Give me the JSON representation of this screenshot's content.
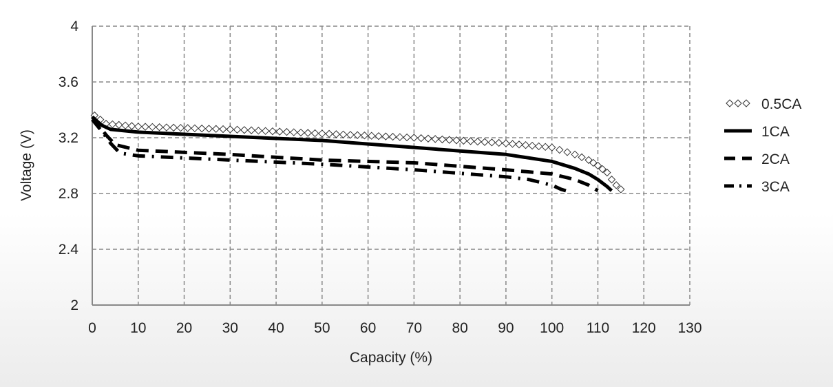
{
  "chart_data": {
    "type": "line",
    "title": "",
    "xlabel": "Capacity (%)",
    "ylabel": "Voltage (V)",
    "xlim": [
      0,
      130
    ],
    "ylim": [
      2,
      4
    ],
    "xticks": [
      0,
      10,
      20,
      30,
      40,
      50,
      60,
      70,
      80,
      90,
      100,
      110,
      120,
      130
    ],
    "yticks": [
      2,
      2.4,
      2.8,
      3.2,
      3.6,
      4
    ],
    "grid": true,
    "legend": "right",
    "series": [
      {
        "name": "0.5CA",
        "style": "diamond-markers",
        "color": "#333333",
        "x": [
          0.5,
          3,
          10,
          30,
          50,
          70,
          90,
          100,
          105,
          108,
          110,
          112,
          113,
          114,
          115
        ],
        "y": [
          3.36,
          3.3,
          3.28,
          3.26,
          3.23,
          3.2,
          3.16,
          3.13,
          3.08,
          3.04,
          3.0,
          2.95,
          2.9,
          2.86,
          2.83
        ]
      },
      {
        "name": "1CA",
        "style": "solid",
        "color": "#000000",
        "x": [
          0,
          2,
          4,
          10,
          30,
          50,
          70,
          90,
          100,
          105,
          108,
          110,
          112,
          113
        ],
        "y": [
          3.35,
          3.29,
          3.26,
          3.24,
          3.21,
          3.18,
          3.13,
          3.08,
          3.03,
          2.98,
          2.94,
          2.9,
          2.85,
          2.82
        ]
      },
      {
        "name": "2CA",
        "style": "dash",
        "color": "#000000",
        "x": [
          0,
          3,
          5,
          10,
          30,
          50,
          70,
          90,
          100,
          105,
          108,
          110
        ],
        "y": [
          3.35,
          3.22,
          3.15,
          3.11,
          3.08,
          3.04,
          3.02,
          2.97,
          2.94,
          2.9,
          2.86,
          2.82
        ]
      },
      {
        "name": "3CA",
        "style": "dash-dot",
        "color": "#000000",
        "x": [
          0,
          2,
          4,
          6,
          10,
          30,
          50,
          70,
          90,
          95,
          100,
          102,
          104
        ],
        "y": [
          3.33,
          3.25,
          3.16,
          3.09,
          3.07,
          3.04,
          3.01,
          2.97,
          2.92,
          2.9,
          2.86,
          2.83,
          2.81
        ]
      }
    ]
  }
}
